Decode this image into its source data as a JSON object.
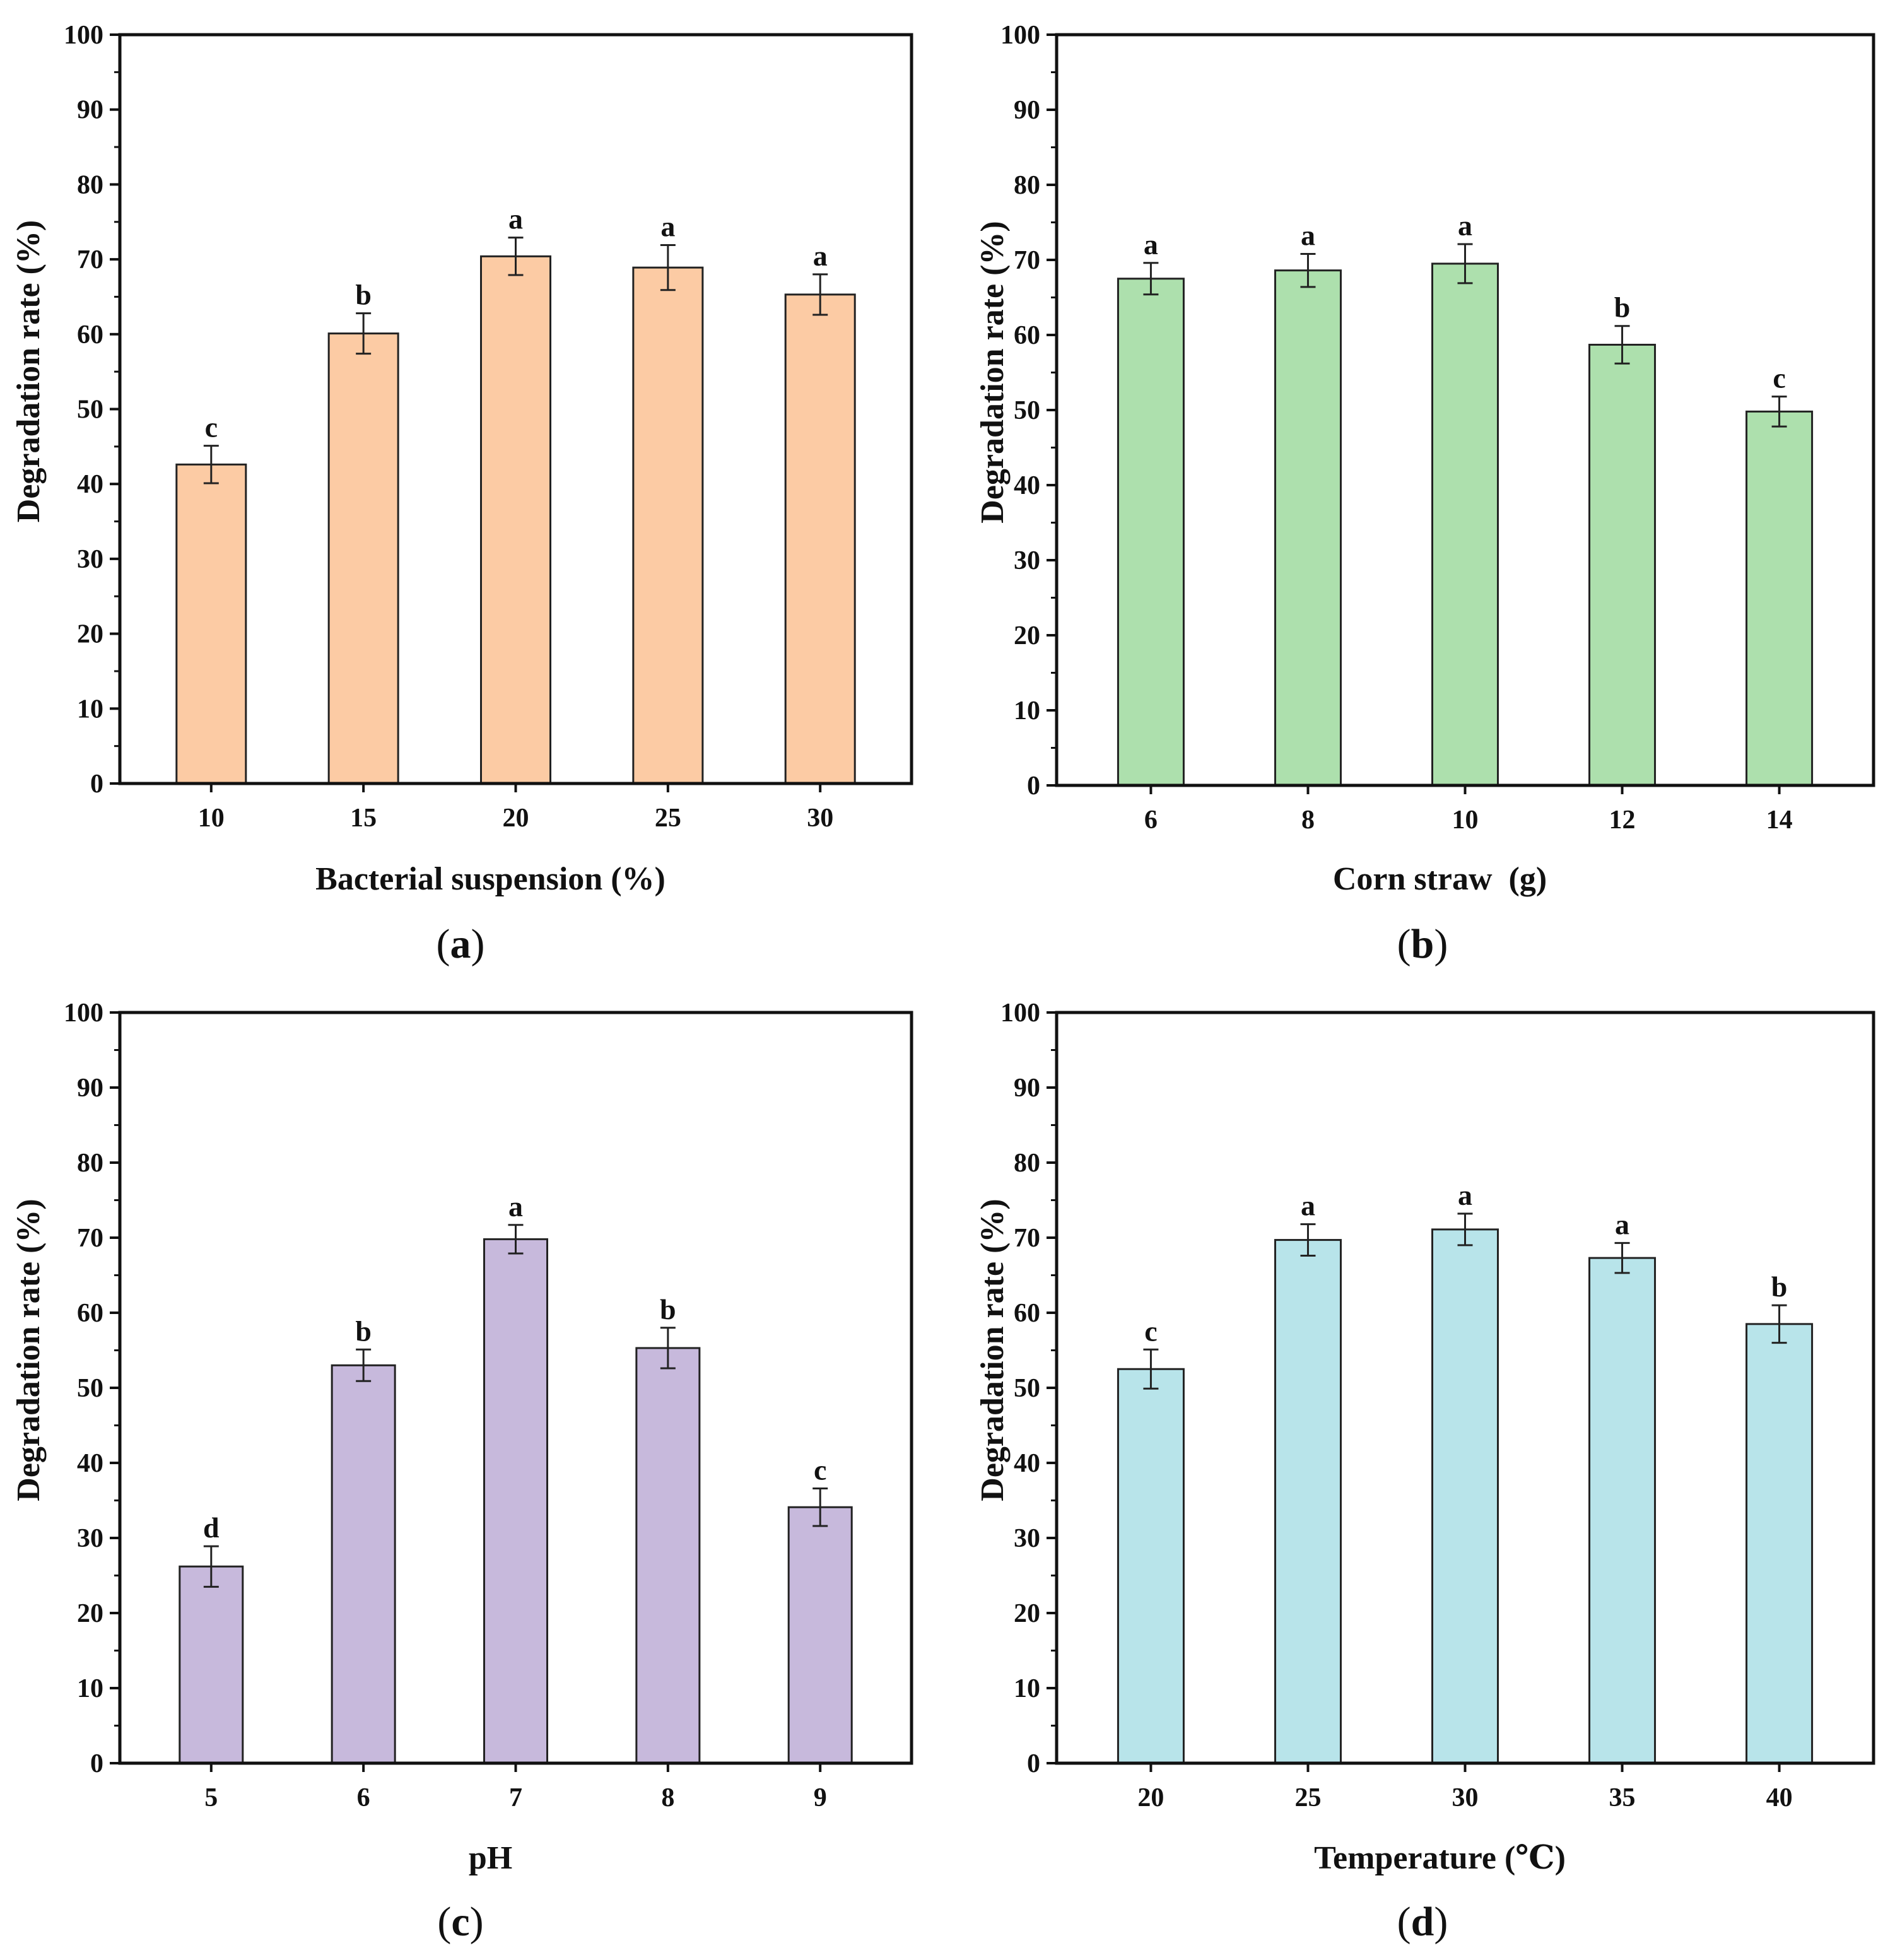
{
  "chart_data": [
    {
      "panel": "a",
      "type": "bar",
      "panel_label": "a",
      "categories": [
        "10",
        "15",
        "20",
        "25",
        "30"
      ],
      "values": [
        42.6,
        60.1,
        70.4,
        68.9,
        65.3
      ],
      "errors": [
        2.5,
        2.7,
        2.5,
        3.0,
        2.7
      ],
      "significance": [
        "c",
        "b",
        "a",
        "a",
        "a"
      ],
      "xlabel": "Bacterial suspension (%)",
      "ylabel": "Degradation rate (%)",
      "ylim": [
        0,
        100
      ],
      "yticks": [
        "0",
        "10",
        "20",
        "30",
        "40",
        "50",
        "60",
        "70",
        "80",
        "90",
        "100"
      ],
      "bar_color": "#fccba4"
    },
    {
      "panel": "b",
      "type": "bar",
      "panel_label": "b",
      "categories": [
        "6",
        "8",
        "10",
        "12",
        "14"
      ],
      "values": [
        67.5,
        68.6,
        69.5,
        58.7,
        49.8
      ],
      "errors": [
        2.1,
        2.2,
        2.6,
        2.5,
        2.0
      ],
      "significance": [
        "a",
        "a",
        "a",
        "b",
        "c"
      ],
      "xlabel": "Corn straw  (g)",
      "ylabel": "Degradation rate (%)",
      "ylim": [
        0,
        100
      ],
      "yticks": [
        "0",
        "10",
        "20",
        "30",
        "40",
        "50",
        "60",
        "70",
        "80",
        "90",
        "100"
      ],
      "bar_color": "#ade0ad"
    },
    {
      "panel": "c",
      "type": "bar",
      "panel_label": "c",
      "categories": [
        "5",
        "6",
        "7",
        "8",
        "9"
      ],
      "values": [
        26.2,
        53.0,
        69.8,
        55.3,
        34.1
      ],
      "errors": [
        2.7,
        2.1,
        1.9,
        2.7,
        2.5
      ],
      "significance": [
        "d",
        "b",
        "a",
        "b",
        "c"
      ],
      "xlabel": "pH",
      "ylabel": "Degradation rate (%)",
      "ylim": [
        0,
        100
      ],
      "yticks": [
        "0",
        "10",
        "20",
        "30",
        "40",
        "50",
        "60",
        "70",
        "80",
        "90",
        "100"
      ],
      "bar_color": "#c7b9dc"
    },
    {
      "panel": "d",
      "type": "bar",
      "panel_label": "d",
      "categories": [
        "20",
        "25",
        "30",
        "35",
        "40"
      ],
      "values": [
        52.5,
        69.7,
        71.1,
        67.3,
        58.5
      ],
      "errors": [
        2.6,
        2.1,
        2.1,
        2.0,
        2.5
      ],
      "significance": [
        "c",
        "a",
        "a",
        "a",
        "b"
      ],
      "xlabel": "Temperature (℃)",
      "ylabel": "Degradation rate (%)",
      "ylim": [
        0,
        100
      ],
      "yticks": [
        "0",
        "10",
        "20",
        "30",
        "40",
        "50",
        "60",
        "70",
        "80",
        "90",
        "100"
      ],
      "bar_color": "#b8e4ea"
    }
  ]
}
